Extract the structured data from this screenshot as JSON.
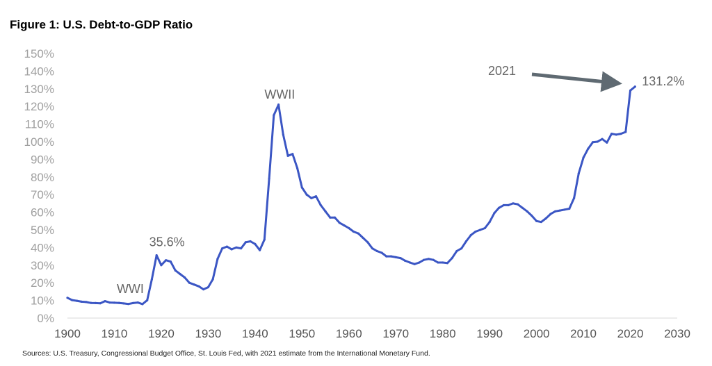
{
  "title": "Figure 1: U.S. Debt-to-GDP Ratio",
  "source": "Sources: U.S. Treasury, Congressional Budget Office, St. Louis Fed, with 2021 estimate from the International Monetary Fund.",
  "colors": {
    "line": "#3b56c4",
    "arrow": "#5f6a72",
    "axis": "#d9d9d9"
  },
  "chart_data": {
    "type": "line",
    "title": "Figure 1: U.S. Debt-to-GDP Ratio",
    "xlabel": "",
    "ylabel": "",
    "xlim": [
      1900,
      2030
    ],
    "ylim": [
      0,
      150
    ],
    "grid": false,
    "x_ticks": [
      "1900",
      "1910",
      "1920",
      "1930",
      "1940",
      "1950",
      "1960",
      "1970",
      "1980",
      "1990",
      "2000",
      "2010",
      "2020",
      "2030"
    ],
    "y_ticks": [
      "0%",
      "10%",
      "20%",
      "30%",
      "40%",
      "50%",
      "60%",
      "70%",
      "80%",
      "90%",
      "100%",
      "110%",
      "120%",
      "130%",
      "140%",
      "150%"
    ],
    "series": [
      {
        "x": [
          1900,
          1901,
          1902,
          1903,
          1904,
          1905,
          1906,
          1907,
          1908,
          1909,
          1910,
          1911,
          1912,
          1913,
          1914,
          1915,
          1916,
          1917,
          1918,
          1919,
          1920,
          1921,
          1922,
          1923,
          1924,
          1925,
          1926,
          1927,
          1928,
          1929,
          1930,
          1931,
          1932,
          1933,
          1934,
          1935,
          1936,
          1937,
          1938,
          1939,
          1940,
          1941,
          1942,
          1943,
          1944,
          1945,
          1946,
          1947,
          1948,
          1949,
          1950,
          1951,
          1952,
          1953,
          1954,
          1955,
          1956,
          1957,
          1958,
          1959,
          1960,
          1961,
          1962,
          1963,
          1964,
          1965,
          1966,
          1967,
          1968,
          1969,
          1970,
          1971,
          1972,
          1973,
          1974,
          1975,
          1976,
          1977,
          1978,
          1979,
          1980,
          1981,
          1982,
          1983,
          1984,
          1985,
          1986,
          1987,
          1988,
          1989,
          1990,
          1991,
          1992,
          1993,
          1994,
          1995,
          1996,
          1997,
          1998,
          1999,
          2000,
          2001,
          2002,
          2003,
          2004,
          2005,
          2006,
          2007,
          2008,
          2009,
          2010,
          2011,
          2012,
          2013,
          2014,
          2015,
          2016,
          2017,
          2018,
          2019,
          2020,
          2021
        ],
        "values": [
          11.5,
          10.2,
          9.8,
          9.3,
          9.1,
          8.6,
          8.5,
          8.4,
          9.6,
          8.8,
          8.7,
          8.6,
          8.3,
          8.0,
          8.5,
          8.8,
          7.9,
          10.1,
          22.0,
          35.6,
          30.0,
          32.8,
          32.0,
          27.0,
          25.0,
          23.0,
          20.0,
          19.0,
          18.0,
          16.3,
          17.5,
          22.0,
          33.5,
          39.5,
          40.5,
          39.0,
          40.0,
          39.5,
          43.0,
          43.5,
          42.0,
          38.5,
          44.5,
          79.0,
          115.0,
          121.0,
          104.0,
          92.0,
          93.0,
          85.0,
          74.0,
          70.0,
          68.0,
          69.0,
          64.0,
          60.5,
          57.0,
          57.0,
          54.0,
          52.5,
          51.0,
          49.0,
          48.0,
          45.5,
          43.0,
          39.5,
          38.0,
          37.0,
          35.0,
          35.0,
          34.5,
          34.0,
          32.5,
          31.5,
          30.6,
          31.5,
          33.0,
          33.5,
          33.0,
          31.5,
          31.5,
          31.2,
          34.0,
          38.0,
          39.5,
          43.5,
          47.0,
          49.0,
          50.0,
          51.0,
          54.5,
          59.5,
          62.5,
          64.0,
          64.0,
          65.0,
          64.5,
          62.5,
          60.5,
          58.0,
          55.0,
          54.5,
          56.5,
          59.0,
          60.5,
          61.0,
          61.5,
          62.0,
          68.0,
          82.0,
          91.0,
          96.0,
          99.7,
          100.0,
          101.5,
          99.5,
          104.5,
          104.0,
          104.5,
          105.5,
          129.0,
          131.2
        ]
      }
    ],
    "annotations": [
      {
        "label": "WWI",
        "x": 1918
      },
      {
        "label": "35.6%",
        "x": 1919
      },
      {
        "label": "WWII",
        "x": 1946
      },
      {
        "label": "2021",
        "x": 2021
      },
      {
        "label": "131.2%",
        "x": 2021
      }
    ]
  }
}
